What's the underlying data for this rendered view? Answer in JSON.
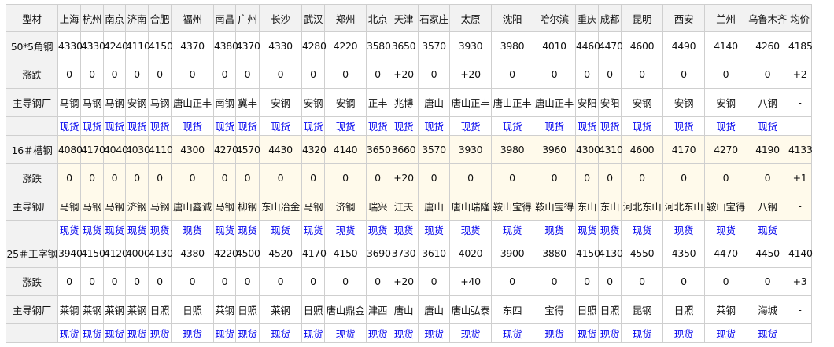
{
  "table": {
    "corner_label": "型材",
    "cities": [
      "上海",
      "杭州",
      "南京",
      "济南",
      "合肥",
      "福州",
      "南昌",
      "广州",
      "长沙",
      "武汉",
      "郑州",
      "北京",
      "天津",
      "石家庄",
      "太原",
      "沈阳",
      "哈尔滨",
      "重庆",
      "成都",
      "昆明",
      "西安",
      "兰州",
      "乌鲁木齐"
    ],
    "avg_label": "均价",
    "change_label": "涨跌",
    "mill_label": "主导钢厂",
    "link_label": "现货",
    "products": [
      {
        "name": "50*5角钢",
        "prices": [
          "4330",
          "4330",
          "4240",
          "4110",
          "4150",
          "4370",
          "4380",
          "4370",
          "4330",
          "4280",
          "4220",
          "3580",
          "3650",
          "3570",
          "3930",
          "3980",
          "4010",
          "4460",
          "4470",
          "4600",
          "4490",
          "4140",
          "4260"
        ],
        "avg": "4185",
        "changes": [
          "0",
          "0",
          "0",
          "0",
          "0",
          "0",
          "0",
          "0",
          "0",
          "0",
          "0",
          "0",
          "+20",
          "0",
          "+20",
          "0",
          "0",
          "0",
          "0",
          "0",
          "0",
          "0",
          "0"
        ],
        "avg_change": "+2",
        "mills": [
          "马钢",
          "马钢",
          "马钢",
          "安钢",
          "马钢",
          "唐山正丰",
          "南钢",
          "冀丰",
          "安钢",
          "安钢",
          "安钢",
          "正丰",
          "兆博",
          "唐山",
          "唐山正丰",
          "唐山正丰",
          "唐山正丰",
          "安阳",
          "安阳",
          "安钢",
          "安钢",
          "安钢",
          "八钢"
        ],
        "avg_mill": "-"
      },
      {
        "name": "16＃槽钢",
        "prices": [
          "4080",
          "4170",
          "4040",
          "4030",
          "4110",
          "4300",
          "4270",
          "4570",
          "4430",
          "4320",
          "4140",
          "3650",
          "3660",
          "3570",
          "3930",
          "3980",
          "3960",
          "4300",
          "4310",
          "4600",
          "4170",
          "4270",
          "4190"
        ],
        "avg": "4133",
        "changes": [
          "0",
          "0",
          "0",
          "0",
          "0",
          "0",
          "0",
          "0",
          "0",
          "0",
          "0",
          "0",
          "+20",
          "0",
          "0",
          "0",
          "0",
          "0",
          "0",
          "0",
          "0",
          "0",
          "0"
        ],
        "avg_change": "+1",
        "mills": [
          "马钢",
          "马钢",
          "马钢",
          "济钢",
          "马钢",
          "唐山鑫诚",
          "马钢",
          "柳钢",
          "东山冶金",
          "马钢",
          "济钢",
          "瑞兴",
          "江天",
          "唐山",
          "唐山瑞隆",
          "鞍山宝得",
          "鞍山宝得",
          "东山",
          "东山",
          "河北东山",
          "河北东山",
          "鞍山宝得",
          "八钢"
        ],
        "avg_mill": "-"
      },
      {
        "name": "25＃工字钢",
        "prices": [
          "3940",
          "4150",
          "4120",
          "4000",
          "4130",
          "4380",
          "4220",
          "4500",
          "4520",
          "4170",
          "4150",
          "3690",
          "3730",
          "3610",
          "4020",
          "3900",
          "3880",
          "4150",
          "4130",
          "4550",
          "4350",
          "4470",
          "4450"
        ],
        "avg": "4140",
        "changes": [
          "0",
          "0",
          "0",
          "0",
          "0",
          "0",
          "0",
          "0",
          "0",
          "0",
          "0",
          "0",
          "+20",
          "0",
          "+40",
          "0",
          "0",
          "0",
          "0",
          "0",
          "0",
          "0",
          "0"
        ],
        "avg_change": "+3",
        "mills": [
          "莱钢",
          "莱钢",
          "莱钢",
          "莱钢",
          "日照",
          "日照",
          "莱钢",
          "日照",
          "莱钢",
          "日照",
          "唐山鼎金",
          "津西",
          "唐山",
          "唐山",
          "唐山弘泰",
          "东四",
          "宝得",
          "日照",
          "日照",
          "昆钢",
          "日照",
          "莱钢",
          "海城"
        ],
        "avg_mill": "-"
      }
    ]
  },
  "colors": {
    "link": "#0000ee",
    "header_bg": "#f2f2f2",
    "alt_row_bg": "#fffaeb",
    "border": "#cfcfcf"
  }
}
